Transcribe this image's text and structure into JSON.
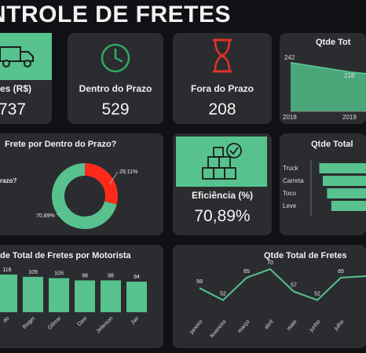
{
  "header": {
    "title": "NTROLE DE FRETES"
  },
  "kpis": {
    "total": {
      "label": "tes (R$)",
      "value": "737",
      "icon": "truck-icon"
    },
    "on_time": {
      "label": "Dentro do Prazo",
      "value": "529",
      "icon": "clock-icon"
    },
    "late": {
      "label": "Fora do Prazo",
      "value": "208",
      "icon": "hourglass-icon"
    },
    "efficiency": {
      "label": "Eficiência (%)",
      "value": "70,89%",
      "icon": "boxes-check-icon"
    }
  },
  "year_chart": {
    "title": "Qtde Tot",
    "chart_data": {
      "type": "area",
      "x": [
        "2018",
        "2019"
      ],
      "values": [
        242,
        218
      ],
      "title": "Qtde Tot"
    },
    "labels": [
      "242",
      "218",
      "2018",
      "2019"
    ]
  },
  "donut": {
    "title": "Frete por Dentro do Prazo?",
    "legend_fragment": "razo?",
    "chart_data": {
      "type": "pie",
      "slices": [
        {
          "label": "70,89%",
          "value": 70.89,
          "color": "#57c28d"
        },
        {
          "label": "29,11%",
          "value": 29.11,
          "color": "#ff2a1a"
        }
      ]
    }
  },
  "vehicle_chart": {
    "title": "Qtde Total",
    "chart_data": {
      "type": "bar",
      "categories": [
        "Truck",
        "Carreta",
        "Toco",
        "Leve"
      ],
      "values": [
        95,
        90,
        84,
        78
      ]
    }
  },
  "driver_chart": {
    "title": "de Total de Fretes por Motorista",
    "chart_data": {
      "type": "bar",
      "categories": [
        "do",
        "Roger",
        "Gilmar",
        "Davi",
        "Jeferson",
        "Jair"
      ],
      "values": [
        116,
        109,
        105,
        98,
        98,
        94
      ]
    }
  },
  "month_chart": {
    "title": "Qtde Total de Fretes",
    "chart_data": {
      "type": "line",
      "categories": [
        "janeiro",
        "fevereiro",
        "março",
        "abril",
        "maio",
        "junho",
        "julho"
      ],
      "values": [
        59,
        52,
        65,
        70,
        57,
        52,
        65
      ]
    }
  },
  "colors": {
    "accent": "#57c28d",
    "alert": "#ff2a1a",
    "card": "#2b2c30",
    "background": "#0f1115"
  }
}
